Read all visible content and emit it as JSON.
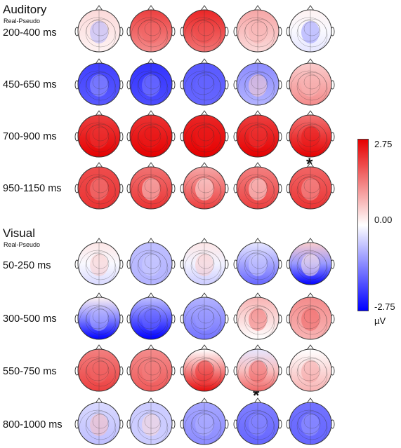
{
  "auditory": {
    "title": "Auditory",
    "subtitle": "Real-Pseudo",
    "rows": [
      {
        "label": "200-400 ms",
        "maps": [
          {
            "front": 0.15,
            "back": 0.05,
            "blob": {
              "v": -0.3
            }
          },
          {
            "front": 0.75,
            "back": 0.45,
            "blob": {
              "v": 0.6
            }
          },
          {
            "front": 0.85,
            "back": 0.55,
            "blob": {
              "v": 0.7
            }
          },
          {
            "front": 0.35,
            "back": 0.15,
            "blob": {
              "v": 0.3
            }
          },
          {
            "front": 0.05,
            "back": -0.1,
            "blob": {
              "v": -0.4
            }
          }
        ]
      },
      {
        "label": "450-650 ms",
        "maps": [
          {
            "front": -0.75,
            "back": -0.65,
            "blob": {
              "v": -0.4
            }
          },
          {
            "front": -0.8,
            "back": -0.7,
            "blob": {
              "v": -0.5
            }
          },
          {
            "front": -0.65,
            "back": -0.6,
            "blob": {
              "v": -0.6
            }
          },
          {
            "front": -0.45,
            "back": -0.3,
            "blob": {
              "v": 0.2
            }
          },
          {
            "front": 0.2,
            "back": 0.45,
            "blob": {
              "v": 0.3
            }
          }
        ]
      },
      {
        "label": "700-900 ms",
        "maps": [
          {
            "front": 0.75,
            "back": 1.0,
            "blob": {
              "v": 0.8
            }
          },
          {
            "front": 0.8,
            "back": 1.0,
            "blob": {
              "v": 0.9
            }
          },
          {
            "front": 0.85,
            "back": 1.0,
            "blob": {
              "v": 0.9
            }
          },
          {
            "front": 0.75,
            "back": 1.0,
            "blob": {
              "v": 0.8
            }
          },
          {
            "front": 0.55,
            "back": 1.0,
            "blob": {
              "v": 0.9
            }
          }
        ]
      },
      {
        "label": "950-1150 ms",
        "maps": [
          {
            "front": 0.7,
            "back": 0.8,
            "blob": {
              "v": 0.5
            }
          },
          {
            "front": 0.55,
            "back": 0.8,
            "blob": {
              "v": 0.2
            }
          },
          {
            "front": 0.35,
            "back": 0.75,
            "blob": {
              "v": 0.1
            }
          },
          {
            "front": 0.5,
            "back": 0.75,
            "blob": {
              "v": 0.1
            }
          },
          {
            "front": 0.6,
            "back": 0.8,
            "blob": {
              "v": 0.4
            }
          }
        ]
      }
    ]
  },
  "visual": {
    "title": "Visual",
    "subtitle": "Real-Pseudo",
    "rows": [
      {
        "label": "50-250 ms",
        "maps": [
          {
            "front": 0.1,
            "back": -0.15,
            "blob": {
              "v": 0.2
            }
          },
          {
            "front": -0.25,
            "back": -0.3,
            "blob": {
              "v": -0.2
            }
          },
          {
            "front": 0.1,
            "back": -0.2,
            "blob": {
              "v": 0.2
            }
          },
          {
            "front": -0.1,
            "back": -0.6,
            "blob": {
              "v": -0.2
            }
          },
          {
            "front": 0.2,
            "back": -1.0,
            "blob": {
              "v": 0.1
            }
          }
        ]
      },
      {
        "label": "300-500 ms",
        "maps": [
          {
            "front": 0.05,
            "back": -1.0,
            "blob": {
              "v": -0.3
            }
          },
          {
            "front": -0.25,
            "back": -1.0,
            "blob": {
              "v": -0.6
            }
          },
          {
            "front": -0.3,
            "back": -0.55,
            "blob": {
              "v": -0.4
            }
          },
          {
            "front": 0.3,
            "back": 0.0,
            "blob": {
              "v": 0.55
            }
          },
          {
            "front": 0.45,
            "back": 0.3,
            "blob": {
              "v": 0.6
            }
          }
        ]
      },
      {
        "label": "550-750 ms",
        "maps": [
          {
            "front": 0.5,
            "back": 0.75,
            "blob": {
              "v": 0.6
            }
          },
          {
            "front": 0.45,
            "back": 0.65,
            "blob": {
              "v": 0.5
            }
          },
          {
            "front": 0.0,
            "back": 0.95,
            "blob": {
              "v": 0.8
            }
          },
          {
            "front": -0.1,
            "back": 0.6,
            "blob": {
              "v": 0.6
            }
          },
          {
            "front": 0.0,
            "back": 0.3,
            "blob": {
              "v": 0.35
            }
          }
        ]
      },
      {
        "label": "800-1000 ms",
        "maps": [
          {
            "front": -0.15,
            "back": -0.25,
            "blob": {
              "v": 0.25
            }
          },
          {
            "front": -0.2,
            "back": -0.2,
            "blob": {
              "v": 0.15
            }
          },
          {
            "front": -0.35,
            "back": -0.45,
            "blob": {
              "v": -0.3
            }
          },
          {
            "front": -0.5,
            "back": -0.6,
            "blob": {
              "v": -0.45
            }
          },
          {
            "front": -0.55,
            "back": -0.6,
            "blob": {
              "v": -0.4
            }
          }
        ]
      }
    ]
  },
  "significance": [
    {
      "section": "auditory",
      "row": 2,
      "col": 4,
      "mark": "*"
    },
    {
      "section": "visual",
      "row": 2,
      "col": 3,
      "mark": "*"
    }
  ],
  "colorbar": {
    "max_label": "2.75",
    "mid_label": "0.00",
    "min_label": "-2.75",
    "unit": "µV",
    "max_color": "#e60000",
    "mid_color": "#ffffff",
    "min_color": "#0000ff"
  }
}
